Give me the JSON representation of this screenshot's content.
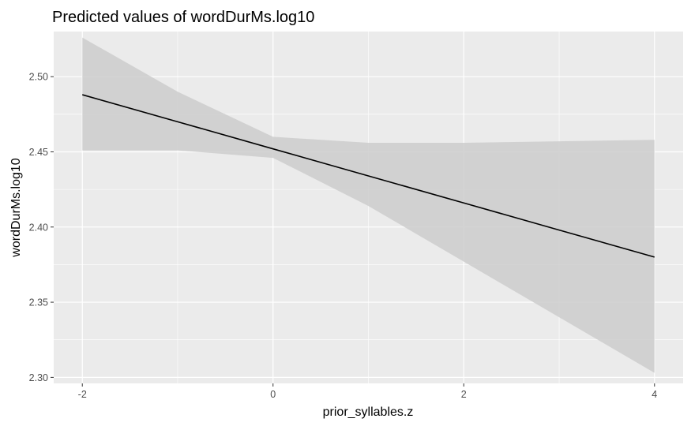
{
  "chart_data": {
    "type": "line",
    "title": "Predicted values of wordDurMs.log10",
    "xlabel": "prior_syllables.z",
    "ylabel": "wordDurMs.log10",
    "xlim": [
      -2.3,
      4.3
    ],
    "ylim": [
      2.296,
      2.53
    ],
    "x_ticks": [
      -2,
      0,
      2,
      4
    ],
    "y_ticks": [
      2.3,
      2.35,
      2.4,
      2.45,
      2.5
    ],
    "x_tick_labels": [
      "-2",
      "0",
      "2",
      "4"
    ],
    "y_tick_labels": [
      "2.30",
      "2.35",
      "2.40",
      "2.45",
      "2.50"
    ],
    "grid": true,
    "colors": {
      "panel": "#EBEBEB",
      "grid": "#FFFFFF",
      "ribbon": "#CCCCCC",
      "line": "#000000",
      "tick": "#333333"
    },
    "series": [
      {
        "x": [
          -2,
          -1,
          0,
          1,
          2,
          3,
          4
        ],
        "y": [
          2.488,
          2.47,
          2.452,
          2.434,
          2.416,
          2.398,
          2.38
        ]
      }
    ],
    "ribbon": {
      "x": [
        -2,
        -1,
        0,
        1,
        2,
        3,
        4
      ],
      "lower": [
        2.451,
        2.451,
        2.446,
        2.414,
        2.377,
        2.34,
        2.303
      ],
      "upper": [
        2.526,
        2.49,
        2.46,
        2.456,
        2.456,
        2.457,
        2.458
      ]
    }
  }
}
